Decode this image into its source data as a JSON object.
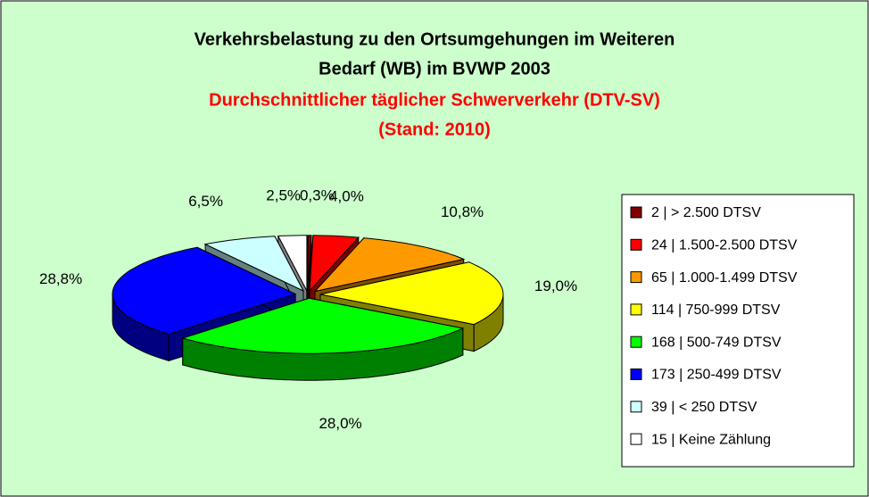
{
  "chart_data": {
    "type": "pie3d",
    "title": [
      "Verkehrsbelastung zu den Ortsumgehungen im Weiteren",
      "Bedarf (WB) im BVWP 2003"
    ],
    "subtitle": [
      "Durchschnittlicher täglicher Schwerverkehr (DTV-SV)",
      "(Stand: 2010)"
    ],
    "categories": [
      "2 | > 2.500 DTSV",
      "24 | 1.500-2.500 DTSV",
      "65 | 1.000-1.499 DTSV",
      "114 | 750-999 DTSV",
      "168 | 500-749 DTSV",
      "173 | 250-499 DTSV",
      "39 | < 250 DTSV",
      "15 | Keine Zählung"
    ],
    "values": [
      0.3,
      4.0,
      10.8,
      19.0,
      28.0,
      28.8,
      6.5,
      2.5
    ],
    "value_labels": [
      "0,3%",
      "4,0%",
      "10,8%",
      "19,0%",
      "28,0%",
      "28,8%",
      "6,5%",
      "2,5%"
    ],
    "colors": [
      "#800000",
      "#ff0000",
      "#ff9900",
      "#ffff00",
      "#00ff00",
      "#0000ff",
      "#ccffff",
      "#ffffff"
    ],
    "legend": "right"
  }
}
